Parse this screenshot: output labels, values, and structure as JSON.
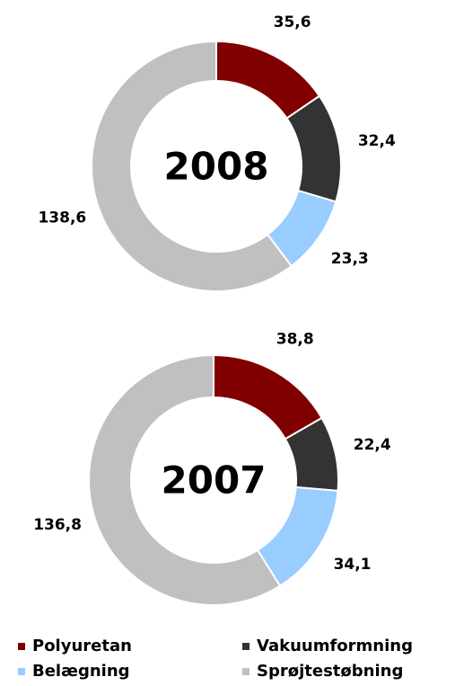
{
  "chart_data": [
    {
      "type": "donut",
      "title": "2008",
      "categories": [
        "Polyuretan",
        "Vakuumformning",
        "Belægning",
        "Sprøjtestøbning"
      ],
      "values": [
        35.6,
        32.4,
        23.3,
        138.6
      ],
      "value_labels": [
        "35,6",
        "32,4",
        "23,3",
        "138,6"
      ],
      "colors": [
        "#800000",
        "#333333",
        "#99ccff",
        "#c0c0c0"
      ]
    },
    {
      "type": "donut",
      "title": "2007",
      "categories": [
        "Polyuretan",
        "Vakuumformning",
        "Belægning",
        "Sprøjtestøbning"
      ],
      "values": [
        38.8,
        22.4,
        34.1,
        136.8
      ],
      "value_labels": [
        "38,8",
        "22,4",
        "34,1",
        "136,8"
      ],
      "colors": [
        "#800000",
        "#333333",
        "#99ccff",
        "#c0c0c0"
      ]
    }
  ]
}
